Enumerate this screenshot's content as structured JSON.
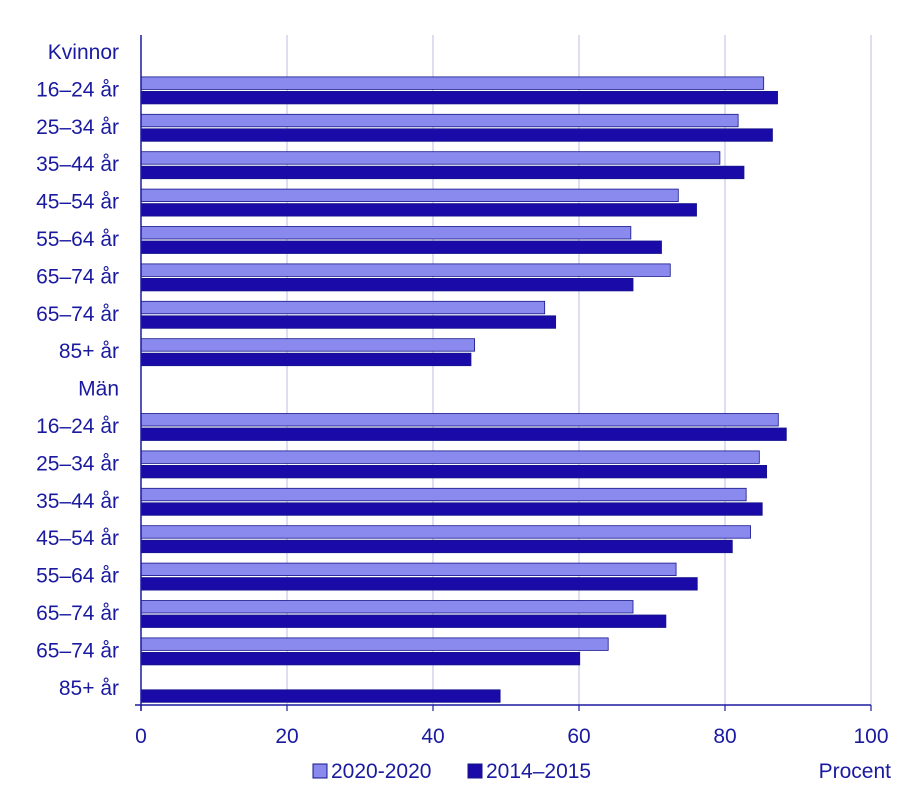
{
  "colors": {
    "text": "#1a1aa0",
    "series_2020": "#8a8aee",
    "series_2014": "#1a0aa8",
    "grid": "#c8c8e8",
    "axis": "#1a1aa0"
  },
  "chart_data": {
    "type": "bar",
    "orientation": "horizontal",
    "categories": [
      "Kvinnor",
      "16–24 år",
      "25–34 år",
      "35–44 år",
      "45–54 år",
      "55–64 år",
      "65–74 år",
      "65–74 år",
      "85+ år",
      "Män",
      "16–24 år",
      "25–34 år",
      "35–44 år",
      "45–54 år",
      "55–64 år",
      "65–74 år",
      "65–74 år",
      "85+ år"
    ],
    "series": [
      {
        "name": "2020-2020",
        "color": "#8a8aee",
        "values": [
          null,
          85.3,
          81.8,
          79.3,
          73.6,
          67.1,
          72.5,
          55.3,
          45.7,
          null,
          87.3,
          84.7,
          82.9,
          83.5,
          73.3,
          67.4,
          64.0,
          null
        ]
      },
      {
        "name": "2014–2015",
        "color": "#1a0aa8",
        "values": [
          null,
          87.2,
          86.5,
          82.6,
          76.1,
          71.3,
          67.4,
          56.8,
          45.2,
          null,
          88.4,
          85.7,
          85.1,
          81.0,
          76.2,
          71.9,
          60.1,
          49.2
        ]
      }
    ],
    "xlim": [
      0,
      100
    ],
    "xticks": [
      0,
      20,
      40,
      60,
      80,
      100
    ],
    "xlabel": "Procent",
    "grid": true,
    "legend_position": "bottom"
  }
}
